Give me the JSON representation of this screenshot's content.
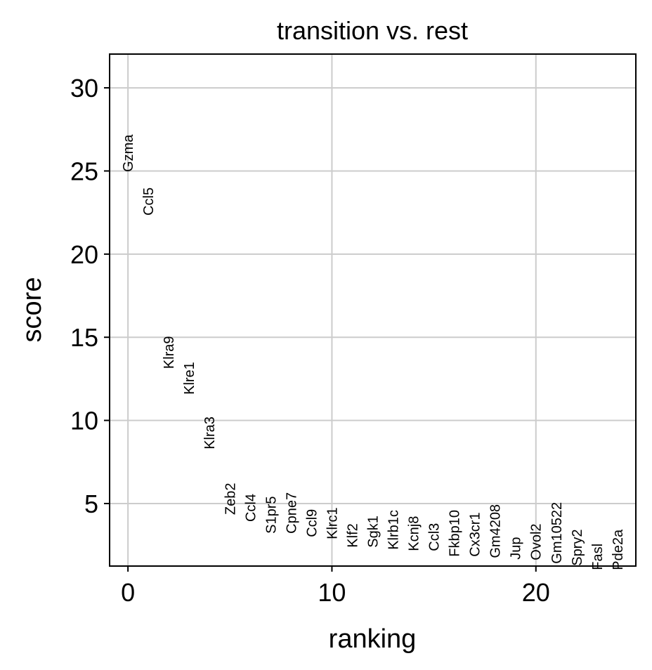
{
  "chart_data": {
    "type": "ranked-labels",
    "title": "transition vs. rest",
    "xlabel": "ranking",
    "ylabel": "score",
    "categories": [
      "Gzma",
      "Ccl5",
      "Klra9",
      "Klre1",
      "Klra3",
      "Zeb2",
      "Ccl4",
      "S1pr5",
      "Cpne7",
      "Ccl9",
      "Klrc1",
      "Klf2",
      "Sgk1",
      "Klrb1c",
      "Kcnj8",
      "Ccl3",
      "Fkbp10",
      "Cx3cr1",
      "Gm4208",
      "Jup",
      "Ovol2",
      "Gm10522",
      "Spry2",
      "Fasl",
      "Pde2a"
    ],
    "values": [
      24.94,
      22.32,
      13.1,
      11.55,
      8.26,
      4.32,
      3.9,
      3.19,
      3.19,
      2.98,
      2.85,
      2.35,
      2.35,
      2.22,
      2.14,
      2.14,
      1.8,
      1.8,
      1.72,
      1.63,
      1.59,
      1.38,
      1.25,
      1.0,
      1.0
    ],
    "color": "#000000",
    "xlim": [
      -0.9,
      24.9
    ],
    "ylim": [
      1.24,
      32.03
    ],
    "xticks": [
      0,
      10,
      20
    ],
    "yticks": [
      5,
      10,
      15,
      20,
      25,
      30
    ],
    "grid": true
  }
}
